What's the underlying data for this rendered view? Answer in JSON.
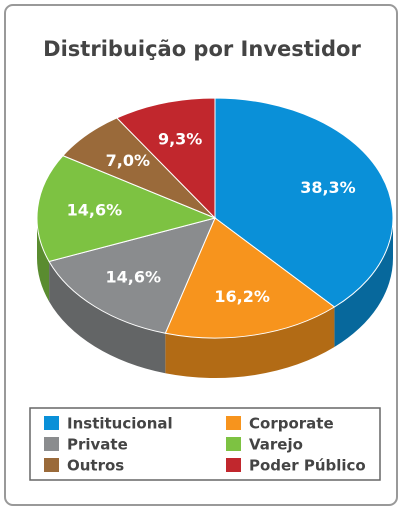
{
  "chart_data": {
    "type": "pie3d",
    "title": "Distribuição por Investidor",
    "categories": [
      "Institucional",
      "Corporate",
      "Private",
      "Varejo",
      "Outros",
      "Poder Público"
    ],
    "values": [
      38.3,
      16.2,
      14.6,
      14.6,
      7.0,
      9.3
    ],
    "value_labels": [
      "38,3%",
      "16,2%",
      "14,6%",
      "14,6%",
      "7,0%",
      "9,3%"
    ],
    "colors": [
      "#0a90d8",
      "#f7941d",
      "#8a8c8e",
      "#7dc242",
      "#9a6a3a",
      "#c1272d"
    ],
    "legend": "bottom"
  }
}
